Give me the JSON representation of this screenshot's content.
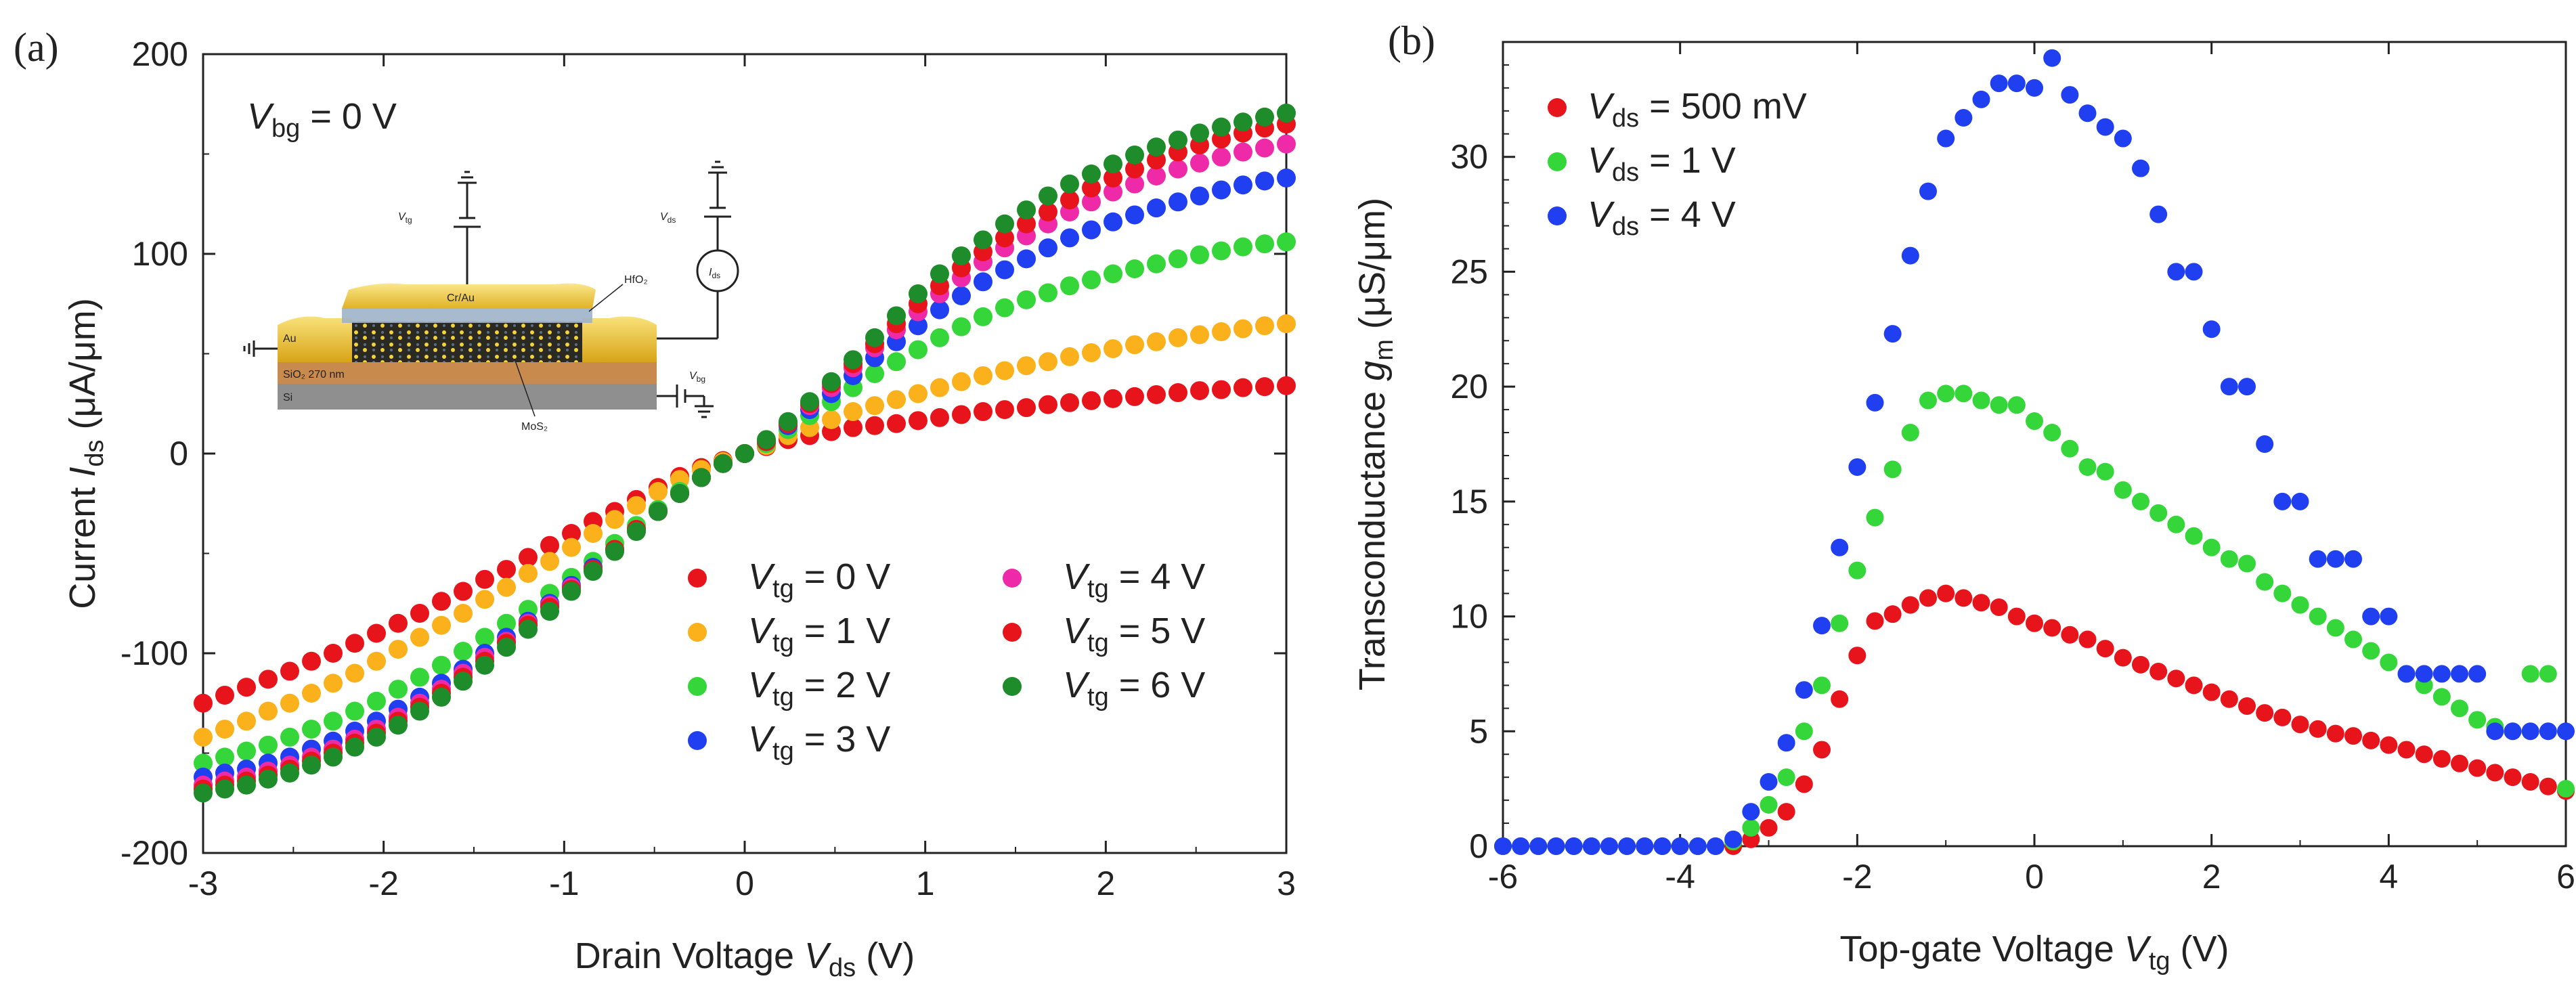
{
  "colors": {
    "red": "#e8141c",
    "orange": "#fbb11c",
    "green": "#35d63a",
    "blue": "#1f3ff0",
    "magenta": "#ee2aa8",
    "darkgreen": "#1e8c2a",
    "axis": "#222222"
  },
  "chart_data": [
    {
      "panel_label": "(a)",
      "type": "scatter",
      "title": "",
      "xlabel": "Drain Voltage V_ds (V)",
      "xlabel_parts": {
        "pre": "Drain Voltage ",
        "var": "V",
        "sub": "ds",
        "post": " (V)"
      },
      "ylabel": "Current I_ds (μA/μm)",
      "ylabel_parts": {
        "pre": "Current ",
        "var": "I",
        "sub": "ds",
        "post": " (μA/μm)"
      },
      "xlim": [
        -3,
        3
      ],
      "ylim": [
        -200,
        200
      ],
      "xticks": [
        -3,
        -2,
        -1,
        0,
        1,
        2,
        3
      ],
      "xtick_labels": [
        "-3",
        "-2",
        "-1",
        "0",
        "1",
        "2",
        "3"
      ],
      "yticks": [
        -200,
        -100,
        0,
        100,
        200
      ],
      "ytick_labels": [
        "-200",
        "-100",
        "0",
        "100",
        "200"
      ],
      "annotation": {
        "var": "V",
        "sub": "bg",
        "post": " = 0 V"
      },
      "inset": {
        "labels": {
          "vtg": "V",
          "vtg_sub": "tg",
          "vds": "V",
          "vds_sub": "ds",
          "ids": "I",
          "ids_sub": "ds",
          "vbg": "V",
          "vbg_sub": "bg",
          "cr_au": "Cr/Au",
          "hfo2": "HfO₂",
          "au": "Au",
          "sio2": "SiO₂ 270 nm",
          "si": "Si",
          "mos2": "MoS₂"
        }
      },
      "x": [
        -3.0,
        -2.88,
        -2.76,
        -2.64,
        -2.52,
        -2.4,
        -2.28,
        -2.16,
        -2.04,
        -1.92,
        -1.8,
        -1.68,
        -1.56,
        -1.44,
        -1.32,
        -1.2,
        -1.08,
        -0.96,
        -0.84,
        -0.72,
        -0.6,
        -0.48,
        -0.36,
        -0.24,
        -0.12,
        0.0,
        0.12,
        0.24,
        0.36,
        0.48,
        0.6,
        0.72,
        0.84,
        0.96,
        1.08,
        1.2,
        1.32,
        1.44,
        1.56,
        1.68,
        1.8,
        1.92,
        2.04,
        2.16,
        2.28,
        2.4,
        2.52,
        2.64,
        2.76,
        2.88,
        3.0
      ],
      "series": [
        {
          "name": "V_tg = 0 V",
          "label": {
            "var": "V",
            "sub": "tg",
            "post": " = 0 V"
          },
          "color_key": "red",
          "legend_col": 0,
          "legend_row": 0,
          "values": [
            -125,
            -121,
            -117,
            -113,
            -109,
            -104,
            -100,
            -95,
            -90,
            -85,
            -80,
            -74,
            -69,
            -63,
            -58,
            -52,
            -46,
            -40,
            -34,
            -29,
            -23,
            -17,
            -11.5,
            -7,
            -3.5,
            0,
            3.5,
            7,
            9,
            11,
            13,
            14,
            15,
            16.5,
            18,
            19.5,
            21,
            22,
            23,
            24.5,
            25.5,
            26.5,
            27.5,
            28.5,
            29.5,
            30.5,
            31.5,
            32,
            33,
            33.5,
            34
          ]
        },
        {
          "name": "V_tg = 1 V",
          "label": {
            "var": "V",
            "sub": "tg",
            "post": " = 1 V"
          },
          "color_key": "orange",
          "legend_col": 0,
          "legend_row": 1,
          "values": [
            -142,
            -138,
            -134,
            -129,
            -125,
            -120,
            -115,
            -110,
            -104,
            -98,
            -92,
            -86,
            -80,
            -73,
            -67,
            -60,
            -54,
            -47,
            -40,
            -33,
            -26,
            -19,
            -13,
            -8,
            -4,
            0,
            4,
            9,
            13,
            17,
            21,
            24,
            27,
            30,
            33,
            36,
            39,
            41.5,
            44,
            46,
            48.5,
            50.5,
            52.5,
            54.5,
            56,
            58,
            59.5,
            61,
            62.5,
            64,
            65
          ]
        },
        {
          "name": "V_tg = 2 V",
          "label": {
            "var": "V",
            "sub": "tg",
            "post": " = 2 V"
          },
          "color_key": "green",
          "legend_col": 0,
          "legend_row": 2,
          "values": [
            -155,
            -152,
            -149,
            -146,
            -142,
            -138,
            -134,
            -129,
            -124,
            -118,
            -112,
            -106,
            -99,
            -92,
            -85,
            -78,
            -70,
            -62,
            -54,
            -45,
            -36,
            -28,
            -19,
            -12,
            -5,
            0,
            5,
            12,
            19,
            26,
            33,
            40,
            46,
            52,
            58,
            63.5,
            68.5,
            73,
            77,
            80.5,
            84,
            87,
            90,
            92.5,
            95,
            97.5,
            99.5,
            101.5,
            103.5,
            105,
            106
          ]
        },
        {
          "name": "V_tg = 3 V",
          "label": {
            "var": "V",
            "sub": "tg",
            "post": " = 3 V"
          },
          "color_key": "blue",
          "legend_col": 0,
          "legend_row": 3,
          "values": [
            -162,
            -160,
            -158,
            -155,
            -152,
            -148,
            -144,
            -139,
            -134,
            -128,
            -122,
            -115,
            -108,
            -100,
            -92,
            -84,
            -75,
            -66,
            -57,
            -48,
            -38,
            -29,
            -20,
            -12,
            -5,
            0,
            6,
            14,
            22,
            30,
            39,
            48,
            56,
            64,
            72,
            79,
            86,
            92,
            97.5,
            103,
            108,
            112,
            116,
            119.5,
            123,
            126,
            129,
            132,
            134.5,
            136.5,
            138
          ]
        },
        {
          "name": "V_tg = 4 V",
          "label": {
            "var": "V",
            "sub": "tg",
            "post": " = 4 V"
          },
          "color_key": "magenta",
          "legend_col": 1,
          "legend_row": 0,
          "values": [
            -166,
            -164,
            -162,
            -159,
            -156,
            -152,
            -148,
            -143,
            -138,
            -132,
            -125,
            -118,
            -110,
            -102,
            -94,
            -85,
            -76,
            -67,
            -58,
            -48,
            -38,
            -29,
            -20,
            -12,
            -5,
            0,
            6,
            15,
            24,
            33,
            43,
            53,
            62,
            71,
            80,
            88,
            96,
            103,
            109,
            115,
            121,
            126,
            131,
            135,
            139,
            142.5,
            145.5,
            148.5,
            151,
            153,
            155
          ]
        },
        {
          "name": "V_tg = 5 V",
          "label": {
            "var": "V",
            "sub": "tg",
            "post": " = 5 V"
          },
          "color_key": "red",
          "legend_col": 1,
          "legend_row": 1,
          "values": [
            -168,
            -166,
            -164,
            -161,
            -158,
            -154,
            -150,
            -145,
            -140,
            -134,
            -127,
            -120,
            -112,
            -104,
            -95,
            -86,
            -77,
            -68,
            -58,
            -48,
            -38,
            -29,
            -20,
            -12,
            -5,
            0,
            6,
            15,
            25,
            35,
            45,
            55,
            65,
            75,
            84,
            93,
            101,
            108,
            115,
            121,
            127,
            133,
            138,
            142.5,
            147,
            151,
            154.5,
            157.5,
            160.5,
            163,
            165
          ]
        },
        {
          "name": "V_tg = 6 V",
          "label": {
            "var": "V",
            "sub": "tg",
            "post": " = 6 V"
          },
          "color_key": "darkgreen",
          "legend_col": 1,
          "legend_row": 2,
          "values": [
            -170,
            -168,
            -166,
            -163,
            -160,
            -156,
            -152,
            -147,
            -142,
            -136,
            -129,
            -122,
            -114,
            -106,
            -97,
            -88,
            -79,
            -69,
            -59,
            -49,
            -39,
            -29,
            -20,
            -12,
            -5,
            0,
            7,
            16,
            26,
            36,
            47,
            58,
            69,
            80,
            90,
            99,
            107,
            115,
            122,
            129,
            135,
            140,
            145,
            149.5,
            153.5,
            157,
            160.5,
            163.5,
            166,
            168.5,
            170.5
          ]
        }
      ]
    },
    {
      "panel_label": "(b)",
      "type": "scatter",
      "title": "",
      "xlabel": "Top-gate Voltage V_tg (V)",
      "xlabel_parts": {
        "pre": "Top-gate Voltage ",
        "var": "V",
        "sub": "tg",
        "post": " (V)"
      },
      "ylabel": "Transconductance g_m (μS/μm)",
      "ylabel_parts": {
        "pre": "Transconductance ",
        "var": "g",
        "sub": "m",
        "post": " (μS/μm)"
      },
      "xlim": [
        -6,
        6
      ],
      "ylim": [
        0,
        35
      ],
      "xticks": [
        -6,
        -4,
        -2,
        0,
        2,
        4,
        6
      ],
      "xtick_labels": [
        "-6",
        "-4",
        "-2",
        "0",
        "2",
        "4",
        "6"
      ],
      "yticks": [
        0,
        5,
        10,
        15,
        20,
        25,
        30
      ],
      "ytick_labels": [
        "0",
        "5",
        "10",
        "15",
        "20",
        "25",
        "30"
      ],
      "x": [
        -6.0,
        -5.8,
        -5.6,
        -5.4,
        -5.2,
        -5.0,
        -4.8,
        -4.6,
        -4.4,
        -4.2,
        -4.0,
        -3.8,
        -3.6,
        -3.4,
        -3.2,
        -3.0,
        -2.8,
        -2.6,
        -2.4,
        -2.2,
        -2.0,
        -1.8,
        -1.6,
        -1.4,
        -1.2,
        -1.0,
        -0.8,
        -0.6,
        -0.4,
        -0.2,
        0.0,
        0.2,
        0.4,
        0.6,
        0.8,
        1.0,
        1.2,
        1.4,
        1.6,
        1.8,
        2.0,
        2.2,
        2.4,
        2.6,
        2.8,
        3.0,
        3.2,
        3.4,
        3.6,
        3.8,
        4.0,
        4.2,
        4.4,
        4.6,
        4.8,
        5.0,
        5.2,
        5.4,
        5.6,
        5.8,
        6.0
      ],
      "series": [
        {
          "name": "V_ds = 500 mV",
          "label": {
            "var": "V",
            "sub": "ds",
            "post": " = 500 mV"
          },
          "color_key": "red",
          "values": [
            0,
            0,
            0,
            0,
            0,
            0,
            0,
            0,
            0,
            0,
            0,
            0,
            0,
            0,
            0.3,
            0.8,
            1.5,
            2.7,
            4.2,
            6.4,
            8.3,
            9.8,
            10.1,
            10.5,
            10.8,
            11.0,
            10.8,
            10.6,
            10.4,
            10.0,
            9.7,
            9.5,
            9.2,
            9.0,
            8.6,
            8.2,
            7.9,
            7.6,
            7.3,
            7.0,
            6.7,
            6.4,
            6.1,
            5.8,
            5.6,
            5.3,
            5.1,
            4.9,
            4.8,
            4.6,
            4.4,
            4.2,
            4.0,
            3.8,
            3.6,
            3.4,
            3.2,
            3.0,
            2.8,
            2.6,
            2.4
          ]
        },
        {
          "name": "V_ds = 1 V",
          "label": {
            "var": "V",
            "sub": "ds",
            "post": " = 1 V"
          },
          "color_key": "green",
          "values": [
            0,
            0,
            0,
            0,
            0,
            0,
            0,
            0,
            0,
            0,
            0,
            0,
            0,
            0.2,
            0.8,
            1.8,
            3.0,
            5.0,
            7.0,
            9.7,
            12.0,
            14.3,
            16.4,
            18.0,
            19.4,
            19.7,
            19.7,
            19.4,
            19.2,
            19.2,
            18.5,
            18.0,
            17.3,
            16.5,
            16.3,
            15.5,
            15.0,
            14.5,
            14.0,
            13.5,
            13.0,
            12.5,
            12.3,
            11.5,
            11.0,
            10.5,
            10.0,
            9.5,
            9.0,
            8.5,
            8.0,
            7.5,
            7.0,
            6.5,
            6.0,
            5.5,
            5.2,
            5.0,
            7.5,
            7.5,
            2.5
          ]
        },
        {
          "name": "V_ds = 4 V",
          "label": {
            "var": "V",
            "sub": "ds",
            "post": " = 4 V"
          },
          "color_key": "blue",
          "values": [
            0,
            0,
            0,
            0,
            0,
            0,
            0,
            0,
            0,
            0,
            0,
            0,
            0,
            0.3,
            1.5,
            2.8,
            4.5,
            6.8,
            9.6,
            13.0,
            16.5,
            19.3,
            22.3,
            25.7,
            28.5,
            30.8,
            31.7,
            32.5,
            33.2,
            33.2,
            33.0,
            34.3,
            32.7,
            31.9,
            31.3,
            30.8,
            29.5,
            27.5,
            25.0,
            25.0,
            22.5,
            20.0,
            20.0,
            17.5,
            15.0,
            15.0,
            12.5,
            12.5,
            12.5,
            10.0,
            10.0,
            7.5,
            7.5,
            7.5,
            7.5,
            7.5,
            5.0,
            5.0,
            5.0,
            5.0,
            5.0
          ]
        }
      ]
    }
  ]
}
